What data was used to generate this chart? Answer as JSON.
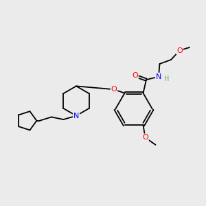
{
  "bg_color": "#ebebeb",
  "bond_color": "#000000",
  "atom_colors": {
    "O": "#ff0000",
    "N": "#0000ff",
    "H": "#7f9f7f",
    "C": "#000000"
  },
  "figsize": [
    3.0,
    3.0
  ],
  "dpi": 100,
  "xlim": [
    0,
    10
  ],
  "ylim": [
    0,
    10
  ]
}
